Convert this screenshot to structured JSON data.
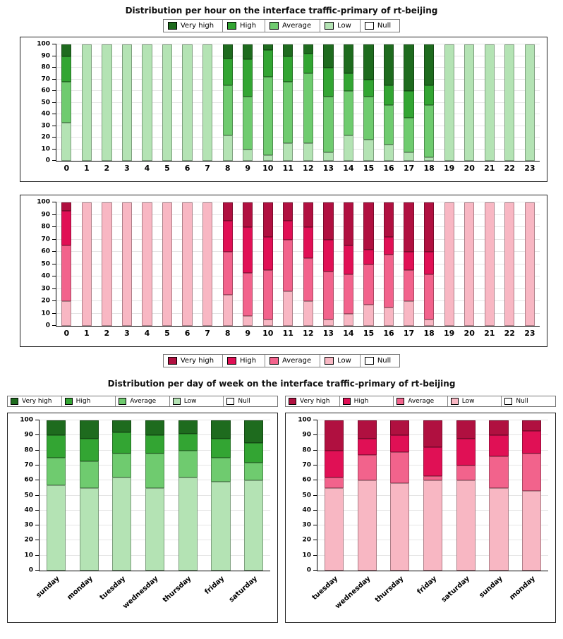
{
  "titles": {
    "hourly": "Distribution per hour on the interface traffic-primary of rt-beijing",
    "weekly": "Distribution per day of week on the interface traffic-primary of rt-beijing"
  },
  "legend_labels": [
    "Very high",
    "High",
    "Average",
    "Low",
    "Null"
  ],
  "palettes": {
    "green": {
      "very_high": "#1e6b1e",
      "high": "#33a533",
      "average": "#6fcb6f",
      "low": "#b4e3b4",
      "null": "#ffffff"
    },
    "red": {
      "very_high": "#b01040",
      "high": "#e01055",
      "average": "#f2638c",
      "low": "#f8b7c3",
      "null": "#ffffff"
    }
  },
  "chart_data": [
    {
      "id": "hourly-green",
      "type": "bar",
      "stacked": true,
      "title": "Distribution per hour on the interface traffic-primary of rt-beijing",
      "palette": "green",
      "legend_position": "top",
      "grid": true,
      "ylim": [
        0,
        100
      ],
      "yticks": [
        0,
        10,
        20,
        30,
        40,
        50,
        60,
        70,
        80,
        90,
        100
      ],
      "rotate_x_labels": false,
      "categories": [
        "0",
        "1",
        "2",
        "3",
        "4",
        "5",
        "6",
        "7",
        "8",
        "9",
        "10",
        "11",
        "12",
        "13",
        "14",
        "15",
        "16",
        "17",
        "18",
        "19",
        "20",
        "21",
        "22",
        "23"
      ],
      "series": [
        {
          "name": "Low",
          "key": "low",
          "values": [
            33,
            100,
            100,
            100,
            100,
            100,
            100,
            100,
            22,
            10,
            5,
            15,
            15,
            7,
            22,
            18,
            14,
            7,
            3,
            100,
            100,
            100,
            100,
            100
          ]
        },
        {
          "name": "Average",
          "key": "average",
          "values": [
            35,
            0,
            0,
            0,
            0,
            0,
            0,
            0,
            43,
            45,
            67,
            53,
            60,
            48,
            38,
            37,
            34,
            30,
            45,
            0,
            0,
            0,
            0,
            0
          ]
        },
        {
          "name": "High",
          "key": "high",
          "values": [
            22,
            0,
            0,
            0,
            0,
            0,
            0,
            0,
            23,
            32,
            23,
            22,
            17,
            25,
            15,
            15,
            17,
            23,
            17,
            0,
            0,
            0,
            0,
            0
          ]
        },
        {
          "name": "Very high",
          "key": "very_high",
          "values": [
            10,
            0,
            0,
            0,
            0,
            0,
            0,
            0,
            12,
            13,
            5,
            10,
            8,
            20,
            25,
            30,
            35,
            40,
            35,
            0,
            0,
            0,
            0,
            0
          ]
        },
        {
          "name": "Null",
          "key": "null",
          "values": [
            0,
            0,
            0,
            0,
            0,
            0,
            0,
            0,
            0,
            0,
            0,
            0,
            0,
            0,
            0,
            0,
            0,
            0,
            0,
            0,
            0,
            0,
            0,
            0
          ]
        }
      ]
    },
    {
      "id": "hourly-red",
      "type": "bar",
      "stacked": true,
      "title": "Distribution per hour on the interface traffic-primary of rt-beijing",
      "palette": "red",
      "legend_position": "bottom",
      "grid": true,
      "ylim": [
        0,
        100
      ],
      "yticks": [
        0,
        10,
        20,
        30,
        40,
        50,
        60,
        70,
        80,
        90,
        100
      ],
      "rotate_x_labels": false,
      "categories": [
        "0",
        "1",
        "2",
        "3",
        "4",
        "5",
        "6",
        "7",
        "8",
        "9",
        "10",
        "11",
        "12",
        "13",
        "14",
        "15",
        "16",
        "17",
        "18",
        "19",
        "20",
        "21",
        "22",
        "23"
      ],
      "series": [
        {
          "name": "Low",
          "key": "low",
          "values": [
            20,
            100,
            100,
            100,
            100,
            100,
            100,
            100,
            25,
            8,
            5,
            28,
            20,
            5,
            10,
            17,
            15,
            20,
            5,
            100,
            100,
            100,
            100,
            100
          ]
        },
        {
          "name": "Average",
          "key": "average",
          "values": [
            45,
            0,
            0,
            0,
            0,
            0,
            0,
            0,
            35,
            35,
            40,
            42,
            35,
            39,
            32,
            33,
            43,
            25,
            37,
            0,
            0,
            0,
            0,
            0
          ]
        },
        {
          "name": "High",
          "key": "high",
          "values": [
            28,
            0,
            0,
            0,
            0,
            0,
            0,
            0,
            25,
            37,
            27,
            15,
            25,
            26,
            23,
            12,
            14,
            15,
            18,
            0,
            0,
            0,
            0,
            0
          ]
        },
        {
          "name": "Very high",
          "key": "very_high",
          "values": [
            7,
            0,
            0,
            0,
            0,
            0,
            0,
            0,
            15,
            20,
            28,
            15,
            20,
            30,
            35,
            38,
            28,
            40,
            40,
            0,
            0,
            0,
            0,
            0
          ]
        },
        {
          "name": "Null",
          "key": "null",
          "values": [
            0,
            0,
            0,
            0,
            0,
            0,
            0,
            0,
            0,
            0,
            0,
            0,
            0,
            0,
            0,
            0,
            0,
            0,
            0,
            0,
            0,
            0,
            0,
            0
          ]
        }
      ]
    },
    {
      "id": "weekly-green",
      "type": "bar",
      "stacked": true,
      "title": "Distribution per day of week on the interface traffic-primary of rt-beijing",
      "palette": "green",
      "legend_position": "top",
      "grid": true,
      "ylim": [
        0,
        100
      ],
      "yticks": [
        0,
        10,
        20,
        30,
        40,
        50,
        60,
        70,
        80,
        90,
        100
      ],
      "rotate_x_labels": true,
      "categories": [
        "sunday",
        "monday",
        "tuesday",
        "wednesday",
        "thursday",
        "friday",
        "saturday"
      ],
      "series": [
        {
          "name": "Low",
          "key": "low",
          "values": [
            57,
            55,
            62,
            55,
            62,
            59,
            60
          ]
        },
        {
          "name": "Average",
          "key": "average",
          "values": [
            18,
            18,
            16,
            23,
            18,
            16,
            12
          ]
        },
        {
          "name": "High",
          "key": "high",
          "values": [
            15,
            15,
            14,
            12,
            11,
            13,
            13
          ]
        },
        {
          "name": "Very high",
          "key": "very_high",
          "values": [
            10,
            12,
            8,
            10,
            9,
            12,
            15
          ]
        },
        {
          "name": "Null",
          "key": "null",
          "values": [
            0,
            0,
            0,
            0,
            0,
            0,
            0
          ]
        }
      ]
    },
    {
      "id": "weekly-red",
      "type": "bar",
      "stacked": true,
      "title": "Distribution per day of week on the interface traffic-primary of rt-beijing",
      "palette": "red",
      "legend_position": "top",
      "grid": true,
      "ylim": [
        0,
        100
      ],
      "yticks": [
        0,
        10,
        20,
        30,
        40,
        50,
        60,
        70,
        80,
        90,
        100
      ],
      "rotate_x_labels": true,
      "categories": [
        "tuesday",
        "wednesday",
        "thursday",
        "friday",
        "saturday",
        "sunday",
        "monday"
      ],
      "series": [
        {
          "name": "Low",
          "key": "low",
          "values": [
            55,
            60,
            58,
            60,
            60,
            55,
            53
          ]
        },
        {
          "name": "Average",
          "key": "average",
          "values": [
            7,
            17,
            21,
            3,
            10,
            21,
            25
          ]
        },
        {
          "name": "High",
          "key": "high",
          "values": [
            18,
            11,
            11,
            19,
            18,
            14,
            15
          ]
        },
        {
          "name": "Very high",
          "key": "very_high",
          "values": [
            20,
            12,
            10,
            18,
            12,
            10,
            7
          ]
        },
        {
          "name": "Null",
          "key": "null",
          "values": [
            0,
            0,
            0,
            0,
            0,
            0,
            0
          ]
        }
      ]
    }
  ]
}
